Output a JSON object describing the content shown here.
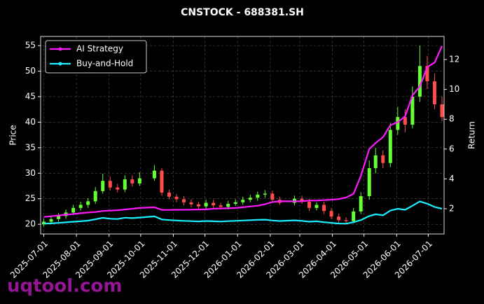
{
  "chart_data": {
    "type": "candlestick",
    "title": "CNSTOCK - 688381.SH",
    "y_label": "Price",
    "y2_label": "Return",
    "watermark": "uqtool.com",
    "grid": true,
    "legend": "upper left",
    "up_color": "#66ff33",
    "down_color": "#ff4d4d",
    "xlim": [
      "2025-06-28",
      "2026-07-16"
    ],
    "xticks": [
      "2025-07-01",
      "2025-08-01",
      "2025-09-01",
      "2025-10-01",
      "2025-11-01",
      "2025-12-01",
      "2026-01-01",
      "2026-02-01",
      "2026-03-01",
      "2026-04-01",
      "2026-05-01",
      "2026-06-01",
      "2026-07-01"
    ],
    "ylim": [
      18.1,
      56.8
    ],
    "yticks": [
      20,
      25,
      30,
      35,
      40,
      45,
      50,
      55
    ],
    "y2lim": [
      0.31,
      13.55
    ],
    "y2ticks": [
      2,
      4,
      6,
      8,
      10,
      12
    ],
    "x": [
      "2025-07-01",
      "2025-07-08",
      "2025-07-15",
      "2025-07-22",
      "2025-07-29",
      "2025-08-05",
      "2025-08-12",
      "2025-08-19",
      "2025-08-26",
      "2025-09-02",
      "2025-09-09",
      "2025-09-16",
      "2025-09-23",
      "2025-09-30",
      "2025-10-14",
      "2025-10-21",
      "2025-10-28",
      "2025-11-04",
      "2025-11-11",
      "2025-11-18",
      "2025-11-25",
      "2025-12-02",
      "2025-12-09",
      "2025-12-16",
      "2025-12-23",
      "2025-12-30",
      "2026-01-06",
      "2026-01-13",
      "2026-01-20",
      "2026-01-27",
      "2026-02-03",
      "2026-02-10",
      "2026-02-24",
      "2026-03-03",
      "2026-03-10",
      "2026-03-17",
      "2026-03-24",
      "2026-03-31",
      "2026-04-07",
      "2026-04-14",
      "2026-04-21",
      "2026-04-28",
      "2026-05-06",
      "2026-05-12",
      "2026-05-19",
      "2026-05-26",
      "2026-06-02",
      "2026-06-09",
      "2026-06-16",
      "2026-06-23",
      "2026-06-30",
      "2026-07-07",
      "2026-07-14"
    ],
    "open": [
      20.0,
      20.5,
      21.0,
      21.6,
      22.3,
      23.2,
      23.8,
      24.5,
      26.5,
      28.5,
      27.2,
      26.8,
      28.8,
      28.0,
      29.0,
      30.5,
      26.2,
      25.4,
      24.9,
      24.3,
      23.9,
      23.5,
      24.2,
      23.7,
      23.4,
      24.0,
      24.3,
      24.8,
      25.2,
      25.8,
      26.0,
      24.8,
      24.2,
      25.0,
      24.4,
      23.2,
      23.8,
      22.6,
      21.5,
      20.8,
      20.6,
      22.5,
      25.5,
      31.0,
      33.5,
      32.0,
      38.5,
      41.0,
      39.5,
      45.0,
      51.0,
      48.0,
      43.5
    ],
    "high": [
      21.1,
      21.6,
      22.2,
      22.9,
      23.8,
      24.4,
      25.1,
      27.3,
      29.9,
      29.3,
      27.9,
      29.6,
      29.6,
      30.2,
      31.6,
      31.0,
      26.8,
      25.9,
      25.5,
      24.9,
      24.4,
      24.8,
      24.8,
      24.2,
      24.6,
      24.9,
      25.4,
      25.8,
      26.4,
      26.7,
      26.6,
      25.4,
      25.6,
      25.6,
      25.0,
      24.3,
      24.4,
      23.2,
      22.1,
      21.4,
      23.2,
      26.3,
      32.5,
      35.0,
      34.5,
      39.8,
      43.0,
      42.5,
      47.0,
      55.0,
      53.0,
      49.5,
      45.0
    ],
    "low": [
      19.6,
      20.0,
      20.5,
      21.1,
      21.8,
      22.7,
      23.2,
      24.0,
      26.0,
      26.6,
      26.2,
      26.3,
      27.4,
      27.5,
      28.5,
      25.6,
      24.9,
      24.3,
      23.7,
      23.3,
      23.0,
      23.0,
      23.2,
      22.9,
      22.9,
      23.6,
      23.8,
      24.3,
      24.6,
      25.2,
      24.2,
      23.8,
      23.7,
      24.0,
      22.6,
      22.7,
      22.0,
      21.0,
      20.3,
      19.9,
      20.2,
      22.0,
      24.8,
      30.0,
      31.0,
      31.2,
      37.5,
      38.0,
      38.8,
      44.0,
      46.5,
      42.5,
      40.2
    ],
    "close": [
      20.5,
      21.0,
      21.6,
      22.3,
      23.2,
      23.8,
      24.5,
      26.5,
      28.5,
      27.2,
      26.8,
      28.8,
      28.0,
      29.0,
      30.5,
      26.2,
      25.4,
      24.9,
      24.3,
      23.9,
      23.5,
      24.2,
      23.7,
      23.4,
      24.0,
      24.3,
      24.8,
      25.2,
      25.8,
      26.0,
      24.8,
      24.2,
      25.0,
      24.4,
      23.2,
      23.8,
      22.6,
      21.5,
      20.8,
      20.6,
      22.5,
      25.5,
      31.0,
      33.5,
      32.0,
      38.5,
      41.0,
      39.5,
      45.0,
      51.0,
      48.0,
      43.5,
      41.0
    ],
    "series": [
      {
        "name": "AI Strategy",
        "color": "#ff1aff",
        "axis": "y2",
        "values": [
          1.45,
          1.5,
          1.55,
          1.6,
          1.65,
          1.7,
          1.75,
          1.78,
          1.85,
          1.88,
          1.9,
          1.95,
          2.0,
          2.05,
          2.1,
          1.92,
          1.92,
          1.93,
          1.93,
          1.94,
          1.95,
          1.96,
          2.0,
          2.02,
          2.03,
          2.05,
          2.1,
          2.15,
          2.2,
          2.3,
          2.45,
          2.5,
          2.5,
          2.5,
          2.55,
          2.55,
          2.58,
          2.6,
          2.65,
          2.75,
          3.0,
          4.2,
          6.0,
          6.4,
          6.8,
          7.6,
          7.8,
          8.2,
          9.6,
          10.2,
          11.5,
          11.8,
          12.9
        ]
      },
      {
        "name": "Buy-and-Hold",
        "color": "#1af0ff",
        "axis": "y2",
        "values": [
          1.0,
          1.02,
          1.05,
          1.09,
          1.13,
          1.16,
          1.2,
          1.29,
          1.39,
          1.33,
          1.31,
          1.4,
          1.37,
          1.41,
          1.49,
          1.28,
          1.24,
          1.21,
          1.19,
          1.17,
          1.15,
          1.18,
          1.16,
          1.14,
          1.17,
          1.19,
          1.21,
          1.23,
          1.26,
          1.27,
          1.21,
          1.18,
          1.22,
          1.19,
          1.13,
          1.16,
          1.1,
          1.05,
          1.01,
          1.0,
          1.1,
          1.24,
          1.51,
          1.63,
          1.56,
          1.88,
          2.0,
          1.93,
          2.2,
          2.49,
          2.34,
          2.12,
          2.0
        ]
      }
    ]
  }
}
